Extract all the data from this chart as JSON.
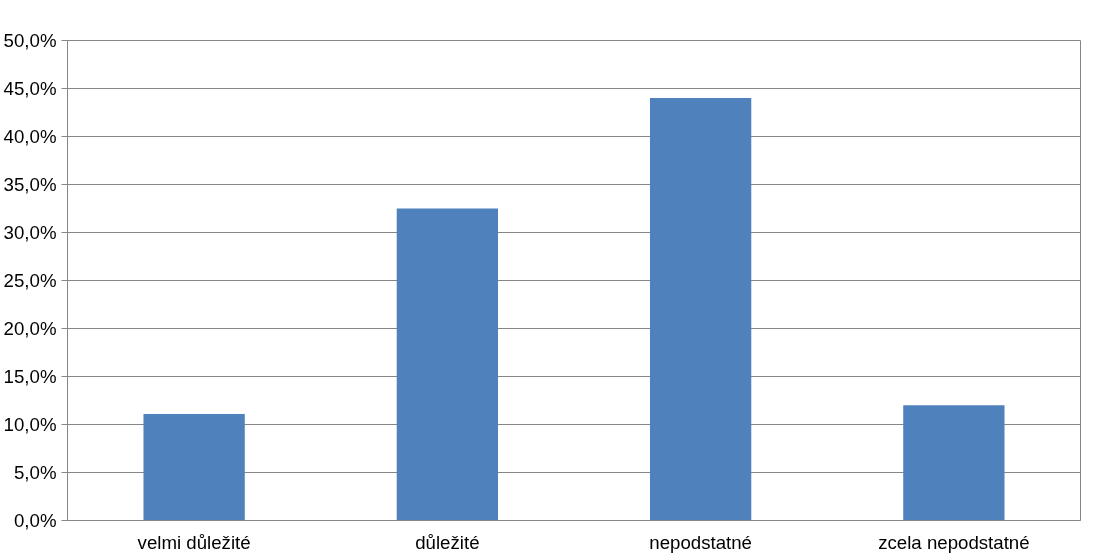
{
  "chart_data": {
    "type": "bar",
    "categories": [
      "velmi důležité",
      "důležité",
      "nepodstatné",
      "zcela nepodstatné"
    ],
    "values": [
      11.1,
      32.5,
      44.0,
      12.0
    ],
    "color": "#4f81bd",
    "ylim": [
      0,
      50
    ],
    "yticks": [
      {
        "value": 0,
        "label": "0,0%"
      },
      {
        "value": 5,
        "label": "5,0%"
      },
      {
        "value": 10,
        "label": "10,0%"
      },
      {
        "value": 15,
        "label": "15,0%"
      },
      {
        "value": 20,
        "label": "20,0%"
      },
      {
        "value": 25,
        "label": "25,0%"
      },
      {
        "value": 30,
        "label": "30,0%"
      },
      {
        "value": 35,
        "label": "35,0%"
      },
      {
        "value": 40,
        "label": "40,0%"
      },
      {
        "value": 45,
        "label": "45,0%"
      },
      {
        "value": 50,
        "label": "50,0%"
      }
    ],
    "grid": "y"
  }
}
